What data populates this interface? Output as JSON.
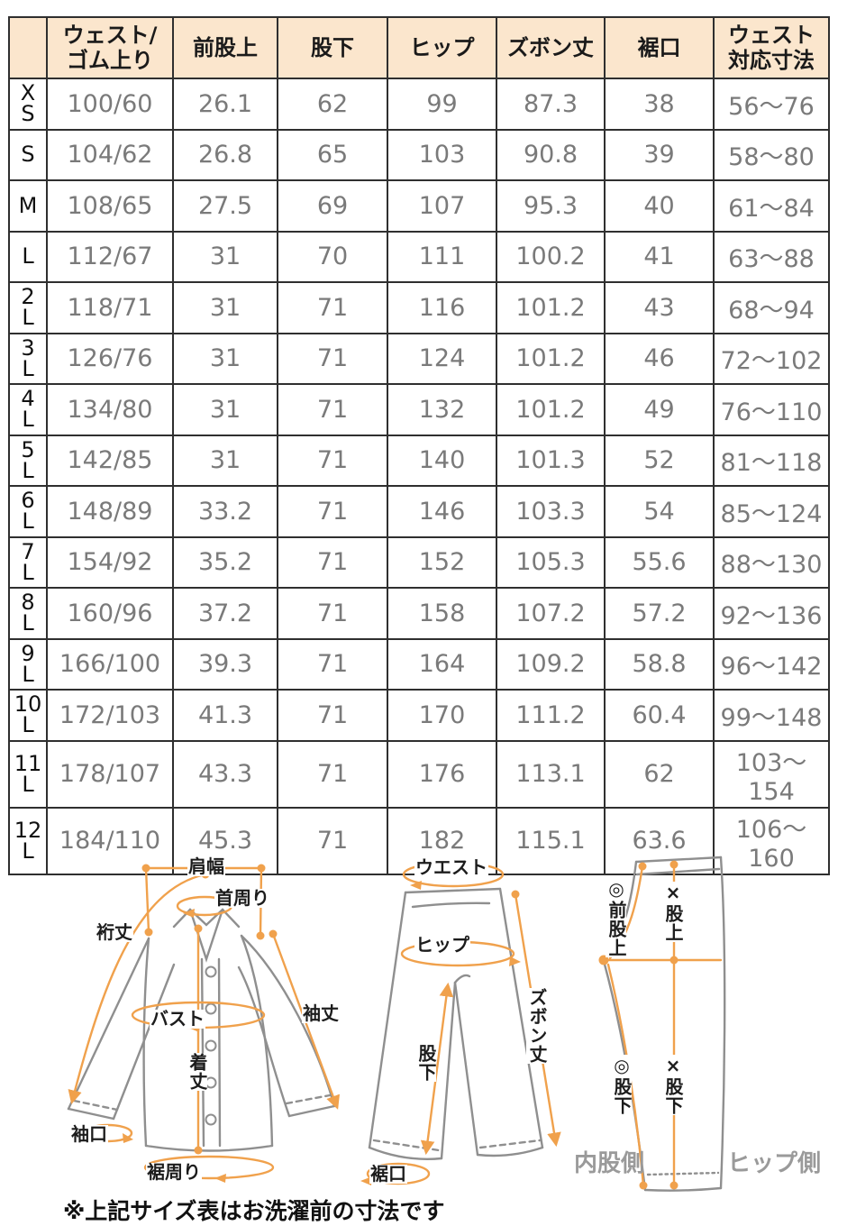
{
  "colors": {
    "header_bg": "#fbe6cd",
    "table_border": "#2f2f2f",
    "data_text": "#7a7a7a",
    "accent_orange": "#f0a14c",
    "outline_gray": "#8f8f8f"
  },
  "table": {
    "columns": [
      "",
      "ウェスト/\nゴム上り",
      "前股上",
      "股下",
      "ヒップ",
      "ズボン丈",
      "裾口",
      "ウェスト\n対応寸法"
    ],
    "rows": [
      {
        "size": "X\nS",
        "cells": [
          "100/60",
          "26.1",
          "62",
          "99",
          "87.3",
          "38",
          "56〜76"
        ]
      },
      {
        "size": "S",
        "cells": [
          "104/62",
          "26.8",
          "65",
          "103",
          "90.8",
          "39",
          "58〜80"
        ]
      },
      {
        "size": "M",
        "cells": [
          "108/65",
          "27.5",
          "69",
          "107",
          "95.3",
          "40",
          "61〜84"
        ]
      },
      {
        "size": "L",
        "cells": [
          "112/67",
          "31",
          "70",
          "111",
          "100.2",
          "41",
          "63〜88"
        ]
      },
      {
        "size": "2\nL",
        "cells": [
          "118/71",
          "31",
          "71",
          "116",
          "101.2",
          "43",
          "68〜94"
        ]
      },
      {
        "size": "3\nL",
        "cells": [
          "126/76",
          "31",
          "71",
          "124",
          "101.2",
          "46",
          "72〜102"
        ]
      },
      {
        "size": "4\nL",
        "cells": [
          "134/80",
          "31",
          "71",
          "132",
          "101.2",
          "49",
          "76〜110"
        ]
      },
      {
        "size": "5\nL",
        "cells": [
          "142/85",
          "31",
          "71",
          "140",
          "101.3",
          "52",
          "81〜118"
        ]
      },
      {
        "size": "6\nL",
        "cells": [
          "148/89",
          "33.2",
          "71",
          "146",
          "103.3",
          "54",
          "85〜124"
        ]
      },
      {
        "size": "7\nL",
        "cells": [
          "154/92",
          "35.2",
          "71",
          "152",
          "105.3",
          "55.6",
          "88〜130"
        ]
      },
      {
        "size": "8\nL",
        "cells": [
          "160/96",
          "37.2",
          "71",
          "158",
          "107.2",
          "57.2",
          "92〜136"
        ]
      },
      {
        "size": "9\nL",
        "cells": [
          "166/100",
          "39.3",
          "71",
          "164",
          "109.2",
          "58.8",
          "96〜142"
        ]
      },
      {
        "size": "10\nL",
        "cells": [
          "172/103",
          "41.3",
          "71",
          "170",
          "111.2",
          "60.4",
          "99〜148"
        ]
      },
      {
        "size": "11\nL",
        "cells": [
          "178/107",
          "43.3",
          "71",
          "176",
          "113.1",
          "62",
          "103〜154"
        ]
      },
      {
        "size": "12\nL",
        "cells": [
          "184/110",
          "45.3",
          "71",
          "182",
          "115.1",
          "63.6",
          "106〜160"
        ]
      }
    ]
  },
  "diagrams": {
    "shirt": {
      "shoulder_width": "肩幅",
      "neck": "首周り",
      "yuki": "裄丈",
      "bust": "バスト",
      "sleeve_length": "袖丈",
      "body_length": "着丈",
      "cuff": "袖口",
      "hem_around": "裾周り"
    },
    "pants": {
      "waist": "ウエスト",
      "hip": "ヒップ",
      "pants_length": "ズボン丈",
      "inseam": "股下",
      "hem": "裾口"
    },
    "side": {
      "front_rise": "◎前股上",
      "rise": "×股上",
      "inseam_a": "◎股下",
      "inseam_b": "×股下",
      "inner_side": "内股側",
      "hip_side": "ヒップ側"
    }
  },
  "note": "※上記サイズ表はお洗濯前の寸法です"
}
